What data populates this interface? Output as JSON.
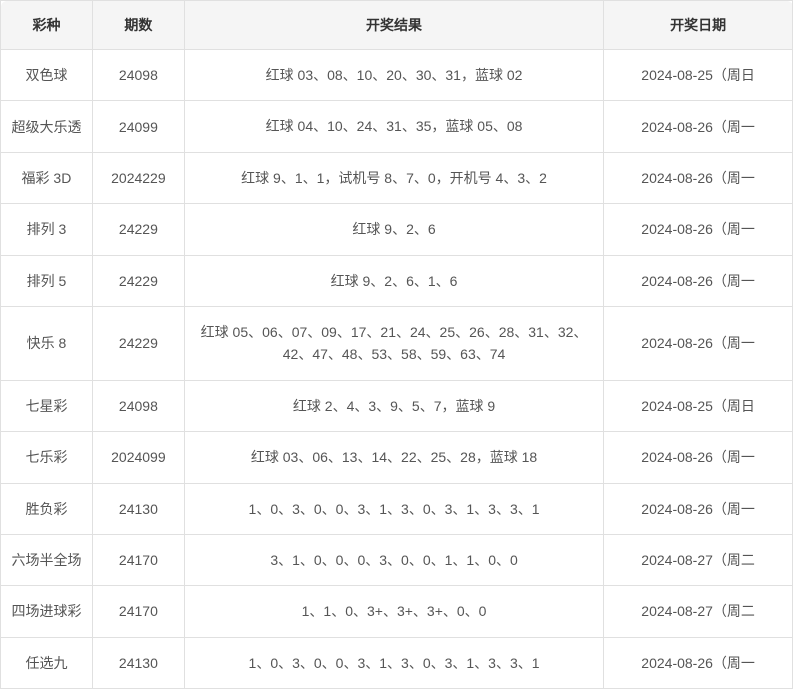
{
  "columns": [
    "彩种",
    "期数",
    "开奖结果",
    "开奖日期"
  ],
  "rows": [
    {
      "type": "双色球",
      "issue": "24098",
      "result": "红球 03、08、10、20、30、31，蓝球 02",
      "date": "2024-08-25（周日"
    },
    {
      "type": "超级大乐透",
      "issue": "24099",
      "result": "红球 04、10、24、31、35，蓝球 05、08",
      "date": "2024-08-26（周一"
    },
    {
      "type": "福彩 3D",
      "issue": "2024229",
      "result": "红球 9、1、1，试机号 8、7、0，开机号 4、3、2",
      "date": "2024-08-26（周一"
    },
    {
      "type": "排列 3",
      "issue": "24229",
      "result": "红球 9、2、6",
      "date": "2024-08-26（周一"
    },
    {
      "type": "排列 5",
      "issue": "24229",
      "result": "红球 9、2、6、1、6",
      "date": "2024-08-26（周一"
    },
    {
      "type": "快乐 8",
      "issue": "24229",
      "result": "红球 05、06、07、09、17、21、24、25、26、28、31、32、42、47、48、53、58、59、63、74",
      "date": "2024-08-26（周一"
    },
    {
      "type": "七星彩",
      "issue": "24098",
      "result": "红球 2、4、3、9、5、7，蓝球 9",
      "date": "2024-08-25（周日"
    },
    {
      "type": "七乐彩",
      "issue": "2024099",
      "result": "红球 03、06、13、14、22、25、28，蓝球 18",
      "date": "2024-08-26（周一"
    },
    {
      "type": "胜负彩",
      "issue": "24130",
      "result": "1、0、3、0、0、3、1、3、0、3、1、3、3、1",
      "date": "2024-08-26（周一"
    },
    {
      "type": "六场半全场",
      "issue": "24170",
      "result": "3、1、0、0、0、3、0、0、1、1、0、0",
      "date": "2024-08-27（周二"
    },
    {
      "type": "四场进球彩",
      "issue": "24170",
      "result": "1、1、0、3+、3+、3+、0、0",
      "date": "2024-08-27（周二"
    },
    {
      "type": "任选九",
      "issue": "24130",
      "result": "1、0、3、0、0、3、1、3、0、3、1、3、3、1",
      "date": "2024-08-26（周一"
    }
  ]
}
